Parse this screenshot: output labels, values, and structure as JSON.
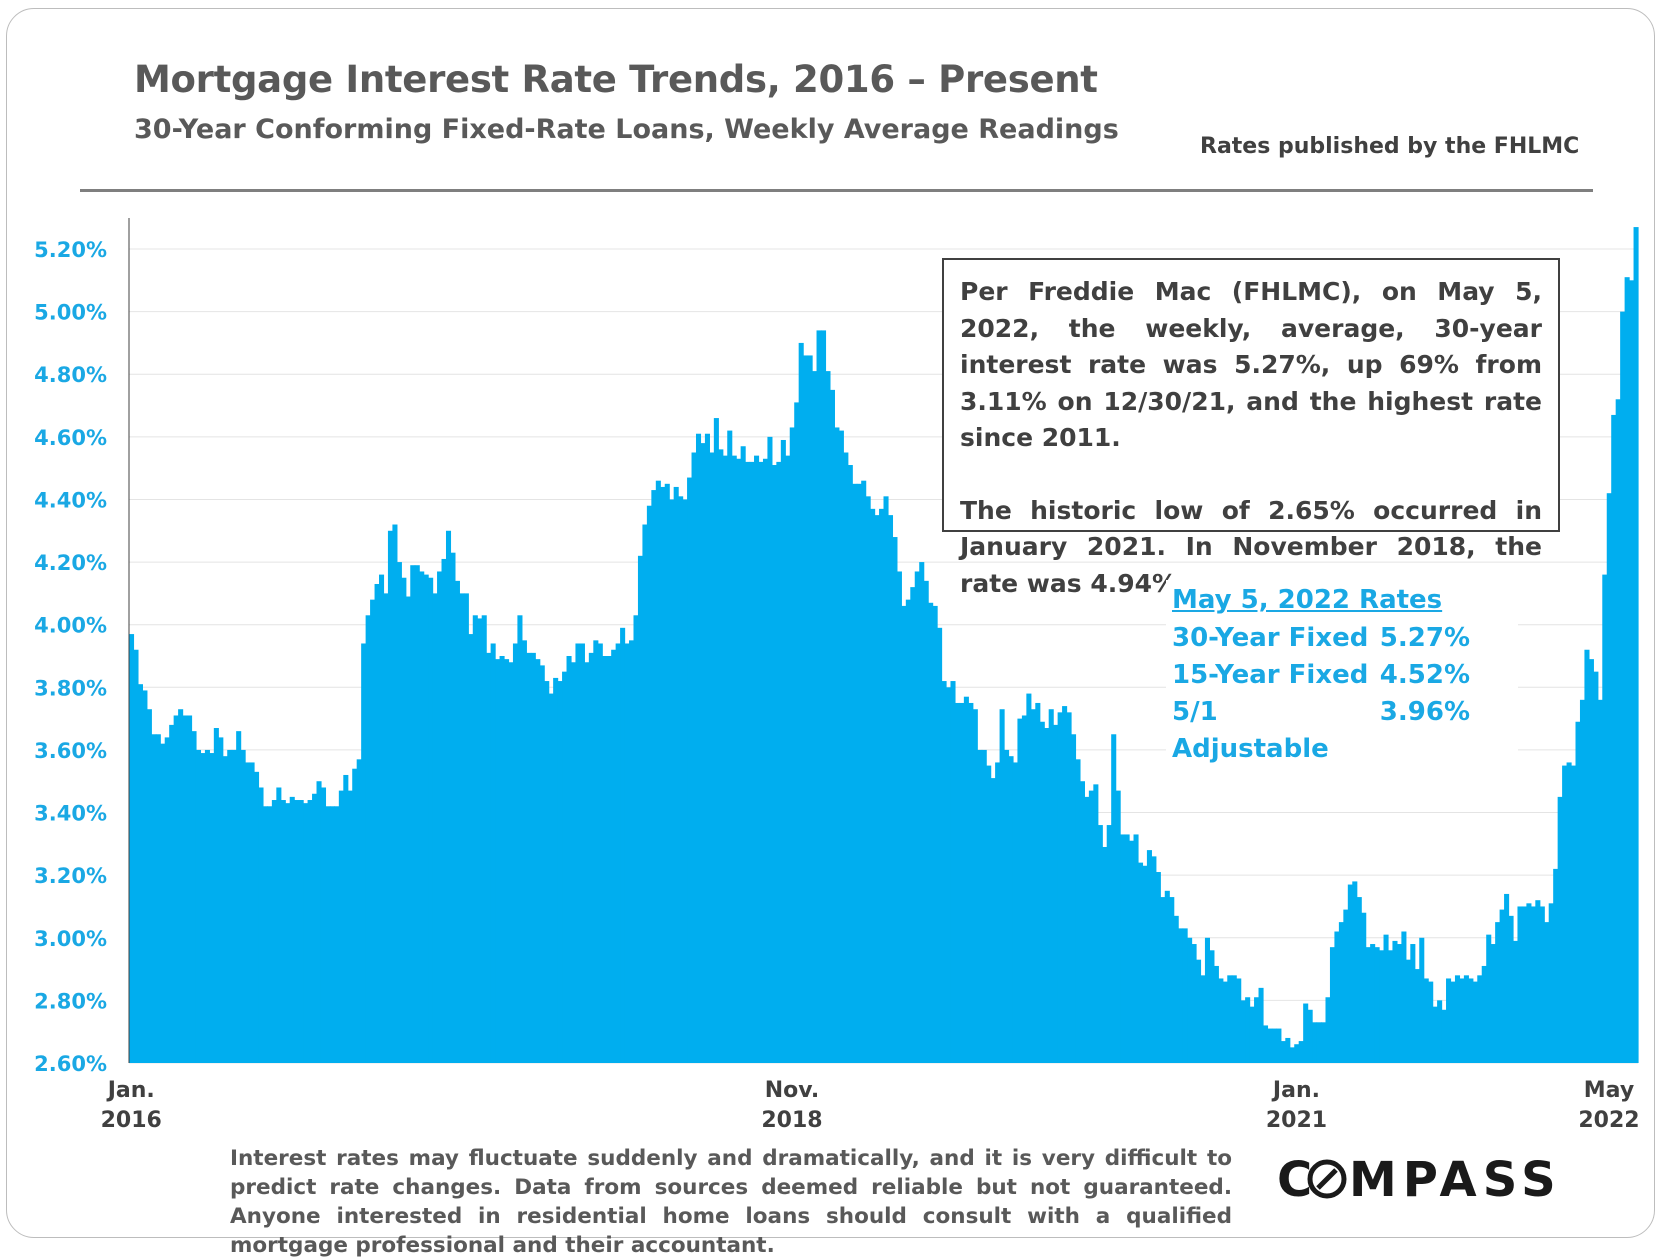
{
  "header": {
    "title": "Mortgage Interest Rate Trends, 2016 – Present",
    "subtitle": "30-Year Conforming Fixed-Rate Loans, Weekly Average Readings",
    "source": "Rates published by the FHLMC"
  },
  "note": {
    "paragraph1": "Per Freddie Mac (FHLMC), on May 5, 2022, the weekly, average, 30-year interest rate was 5.27%, up 69% from 3.11% on 12/30/21, and the highest rate since 2011.",
    "paragraph2": "The historic low of 2.65% occurred in January 2021. In November 2018, the rate was 4.94%."
  },
  "rates_box": {
    "heading": "May 5, 2022 Rates",
    "rows": [
      {
        "label": "30-Year Fixed",
        "value": "5.27%"
      },
      {
        "label": "15-Year Fixed",
        "value": "4.52%"
      },
      {
        "label": "5/1 Adjustable",
        "value": "3.96%"
      }
    ]
  },
  "footer": {
    "disclaimer": "Interest rates may fluctuate suddenly and dramatically, and it is very difficult to predict rate changes. Data from sources deemed reliable but not guaranteed. Anyone interested in residential home loans should consult with a qualified mortgage professional and their accountant.",
    "logo_text": "COMPASS"
  },
  "colors": {
    "area_fill": "#00aeef",
    "axis_tick_blue": "#1aa8e4",
    "text_gray": "#595959"
  },
  "chart_data": {
    "type": "bar",
    "title": "Mortgage Interest Rate Trends, 2016 – Present",
    "subtitle": "30-Year Conforming Fixed-Rate Loans, Weekly Average Readings",
    "xlabel": "",
    "ylabel": "",
    "ylim": [
      2.6,
      5.3
    ],
    "yticks": [
      2.6,
      2.8,
      3.0,
      3.2,
      3.4,
      3.6,
      3.8,
      4.0,
      4.2,
      4.4,
      4.6,
      4.8,
      5.0,
      5.2
    ],
    "ytick_labels": [
      "2.60%",
      "2.80%",
      "3.00%",
      "3.20%",
      "3.40%",
      "3.60%",
      "3.80%",
      "4.00%",
      "4.20%",
      "4.40%",
      "4.60%",
      "4.80%",
      "5.00%",
      "5.20%"
    ],
    "xtick_labels": [
      {
        "line1": "Jan.",
        "line2": "2016",
        "week_index": 0
      },
      {
        "line1": "Nov.",
        "line2": "2018",
        "week_index": 148
      },
      {
        "line1": "Jan.",
        "line2": "2021",
        "week_index": 261
      },
      {
        "line1": "May",
        "line2": "2022",
        "week_index": 331
      }
    ],
    "grid": true,
    "series": [
      {
        "values": [
          3.97,
          3.92,
          3.81,
          3.79,
          3.73,
          3.65,
          3.65,
          3.62,
          3.64,
          3.68,
          3.71,
          3.73,
          3.71,
          3.71,
          3.66,
          3.6,
          3.59,
          3.6,
          3.59,
          3.67,
          3.64,
          3.58,
          3.6,
          3.6,
          3.66,
          3.6,
          3.56,
          3.56,
          3.53,
          3.48,
          3.42,
          3.42,
          3.44,
          3.48,
          3.44,
          3.43,
          3.45,
          3.44,
          3.44,
          3.43,
          3.44,
          3.46,
          3.5,
          3.48,
          3.42,
          3.42,
          3.42,
          3.47,
          3.52,
          3.47,
          3.54,
          3.57,
          3.94,
          4.03,
          4.08,
          4.13,
          4.16,
          4.1,
          4.3,
          4.32,
          4.2,
          4.15,
          4.09,
          4.19,
          4.19,
          4.17,
          4.16,
          4.15,
          4.1,
          4.17,
          4.21,
          4.3,
          4.23,
          4.14,
          4.1,
          4.1,
          3.97,
          4.03,
          4.02,
          4.03,
          3.91,
          3.94,
          3.89,
          3.9,
          3.89,
          3.88,
          3.94,
          4.03,
          3.95,
          3.91,
          3.91,
          3.89,
          3.87,
          3.82,
          3.78,
          3.83,
          3.82,
          3.85,
          3.9,
          3.88,
          3.94,
          3.94,
          3.88,
          3.91,
          3.95,
          3.94,
          3.9,
          3.9,
          3.92,
          3.94,
          3.99,
          3.94,
          3.95,
          4.03,
          4.22,
          4.32,
          4.38,
          4.43,
          4.46,
          4.44,
          4.45,
          4.4,
          4.44,
          4.41,
          4.4,
          4.47,
          4.55,
          4.61,
          4.58,
          4.61,
          4.55,
          4.66,
          4.56,
          4.54,
          4.62,
          4.54,
          4.53,
          4.57,
          4.52,
          4.52,
          4.54,
          4.52,
          4.53,
          4.6,
          4.51,
          4.52,
          4.59,
          4.54,
          4.63,
          4.71,
          4.9,
          4.86,
          4.86,
          4.81,
          4.94,
          4.94,
          4.81,
          4.75,
          4.63,
          4.62,
          4.55,
          4.51,
          4.45,
          4.45,
          4.46,
          4.41,
          4.37,
          4.35,
          4.37,
          4.41,
          4.35,
          4.28,
          4.17,
          4.06,
          4.08,
          4.12,
          4.17,
          4.2,
          4.14,
          4.07,
          4.06,
          3.99,
          3.82,
          3.8,
          3.82,
          3.75,
          3.75,
          3.77,
          3.75,
          3.73,
          3.6,
          3.6,
          3.55,
          3.51,
          3.56,
          3.73,
          3.6,
          3.58,
          3.56,
          3.7,
          3.71,
          3.78,
          3.73,
          3.75,
          3.69,
          3.67,
          3.73,
          3.68,
          3.72,
          3.74,
          3.72,
          3.65,
          3.57,
          3.5,
          3.45,
          3.47,
          3.49,
          3.36,
          3.29,
          3.36,
          3.65,
          3.47,
          3.33,
          3.33,
          3.31,
          3.33,
          3.24,
          3.23,
          3.28,
          3.26,
          3.21,
          3.13,
          3.15,
          3.13,
          3.07,
          3.03,
          3.03,
          3.0,
          2.98,
          2.93,
          2.88,
          3.0,
          2.96,
          2.91,
          2.87,
          2.86,
          2.88,
          2.88,
          2.87,
          2.8,
          2.81,
          2.78,
          2.81,
          2.84,
          2.72,
          2.71,
          2.71,
          2.71,
          2.67,
          2.68,
          2.65,
          2.66,
          2.67,
          2.79,
          2.77,
          2.73,
          2.73,
          2.73,
          2.81,
          2.97,
          3.02,
          3.05,
          3.09,
          3.17,
          3.18,
          3.13,
          3.08,
          2.97,
          2.98,
          2.97,
          2.96,
          3.01,
          2.96,
          2.99,
          2.98,
          3.02,
          2.93,
          2.98,
          2.9,
          3.0,
          2.87,
          2.86,
          2.78,
          2.8,
          2.77,
          2.87,
          2.86,
          2.88,
          2.87,
          2.88,
          2.87,
          2.86,
          2.88,
          2.91,
          3.01,
          2.98,
          3.05,
          3.09,
          3.14,
          3.07,
          2.99,
          3.1,
          3.1,
          3.11,
          3.1,
          3.12,
          3.1,
          3.05,
          3.11,
          3.22,
          3.45,
          3.55,
          3.56,
          3.55,
          3.69,
          3.76,
          3.92,
          3.89,
          3.85,
          3.76,
          4.16,
          4.42,
          4.67,
          4.72,
          5.0,
          5.11,
          5.1,
          5.27
        ]
      }
    ]
  }
}
